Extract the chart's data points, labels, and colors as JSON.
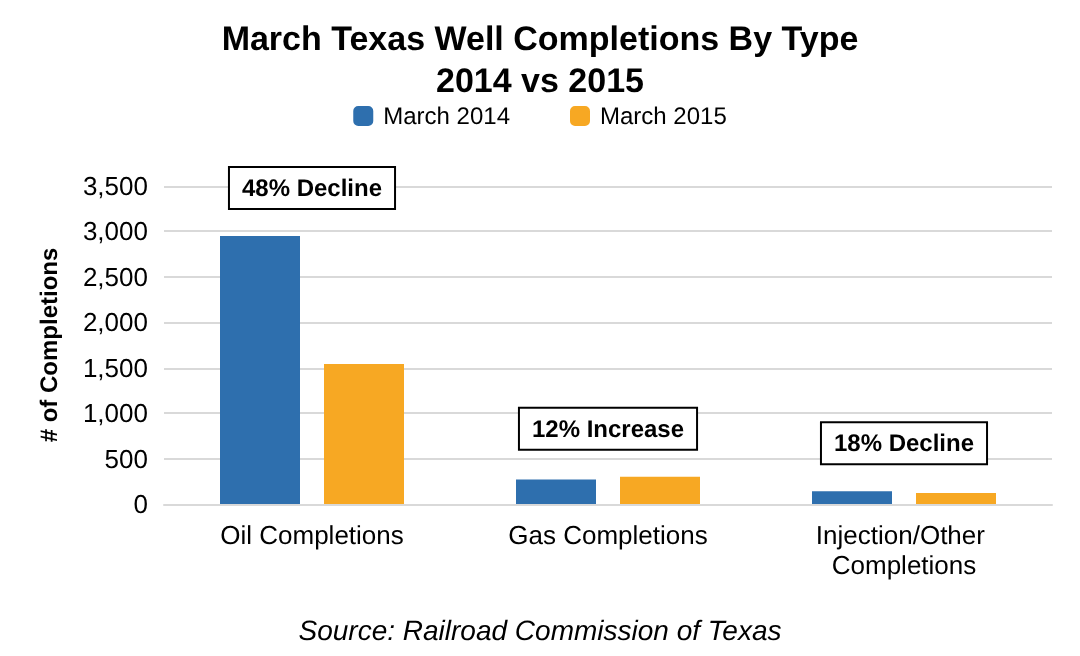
{
  "chart_data": {
    "type": "bar",
    "title": "March Texas Well Completions By Type\n2014 vs 2015",
    "ylabel": "# of Completions",
    "categories": [
      "Oil Completions",
      "Gas Completions",
      "Injection/Other Completions"
    ],
    "series": [
      {
        "name": "March 2014",
        "color": "#2e6fae",
        "values": [
          2950,
          270,
          140
        ]
      },
      {
        "name": "March 2015",
        "color": "#f7a823",
        "values": [
          1540,
          300,
          120
        ]
      }
    ],
    "ylim": [
      0,
      3500
    ],
    "yticks": [
      0,
      500,
      {
        "value": 1000,
        "label": "1,000"
      },
      {
        "value": 1500,
        "label": "1,500"
      },
      {
        "value": 2000,
        "label": "2,000"
      },
      {
        "value": 2500,
        "label": "2,500"
      },
      {
        "value": 3000,
        "label": "3,000"
      },
      {
        "value": 3500,
        "label": "3,500"
      }
    ],
    "grid": "y",
    "legend": "top",
    "annotations": [
      "48% Decline",
      "12% Increase",
      "18% Decline",
      "Source: Railroad Commission of Texas"
    ]
  }
}
